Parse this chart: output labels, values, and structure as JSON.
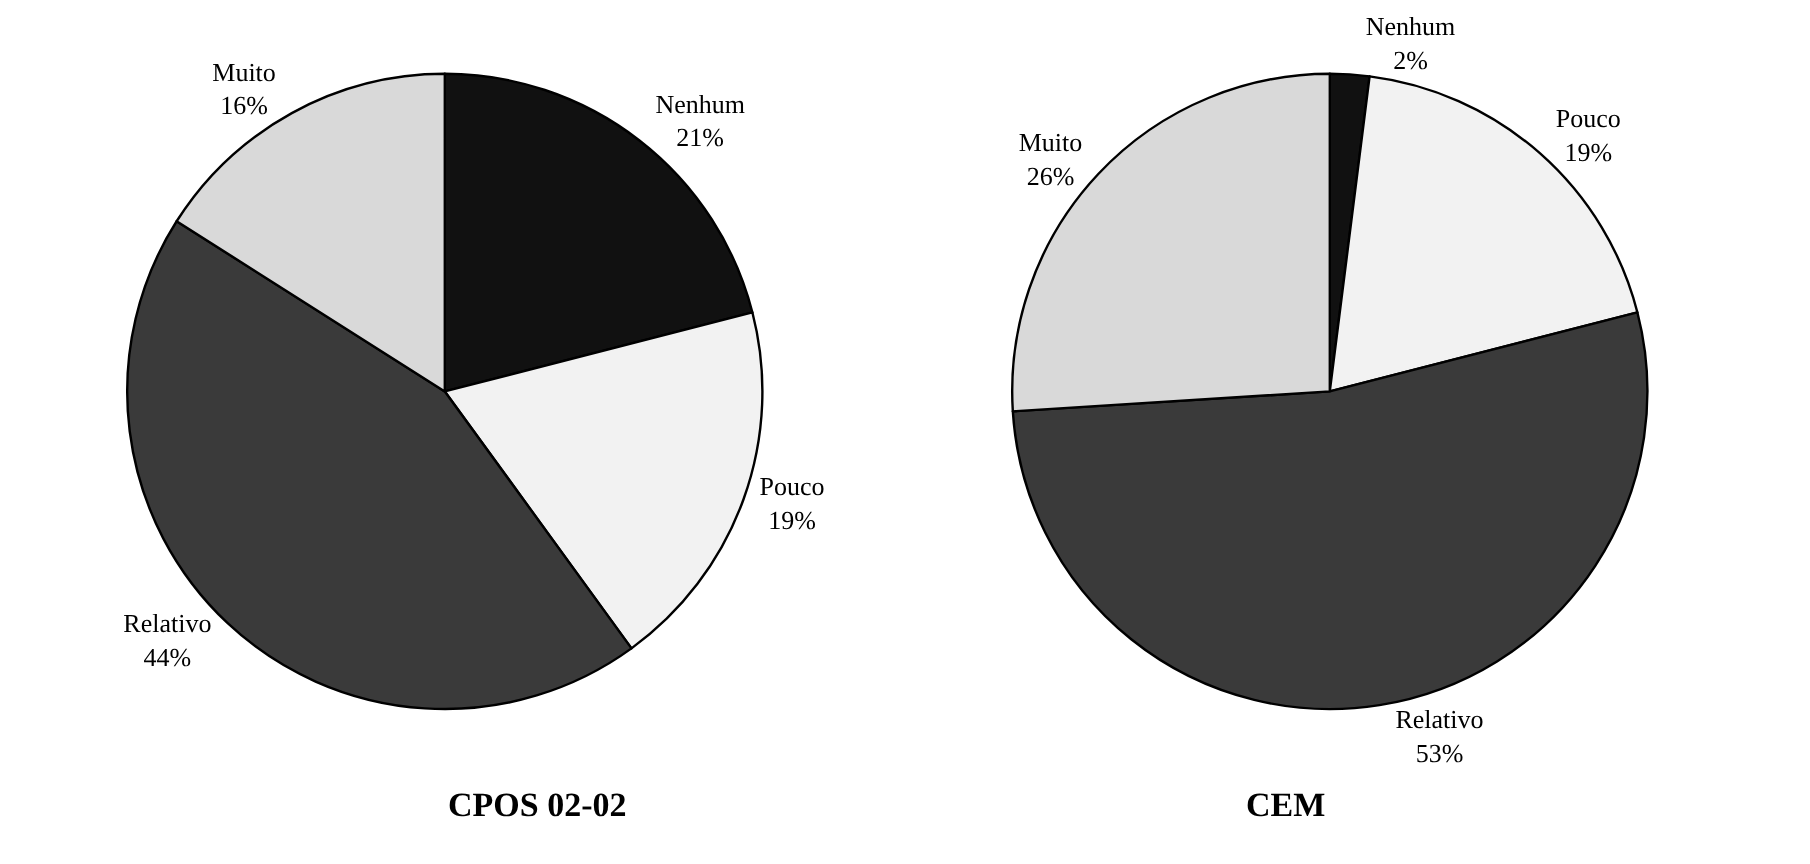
{
  "chart_data": [
    {
      "type": "pie",
      "title": "CPOS 02-02",
      "categories": [
        "Nenhum",
        "Pouco",
        "Relativo",
        "Muito"
      ],
      "values": [
        21,
        19,
        44,
        16
      ],
      "value_labels": [
        "21%",
        "19%",
        "44%",
        "16%"
      ],
      "colors": [
        "#111111",
        "#f2f2f2",
        "#3a3a3a",
        "#d9d9d9"
      ]
    },
    {
      "type": "pie",
      "title": "CEM",
      "categories": [
        "Nenhum",
        "Pouco",
        "Relativo",
        "Muito"
      ],
      "values": [
        2,
        19,
        53,
        26
      ],
      "value_labels": [
        "2%",
        "19%",
        "53%",
        "26%"
      ],
      "colors": [
        "#111111",
        "#f2f2f2",
        "#3a3a3a",
        "#d9d9d9"
      ]
    }
  ]
}
